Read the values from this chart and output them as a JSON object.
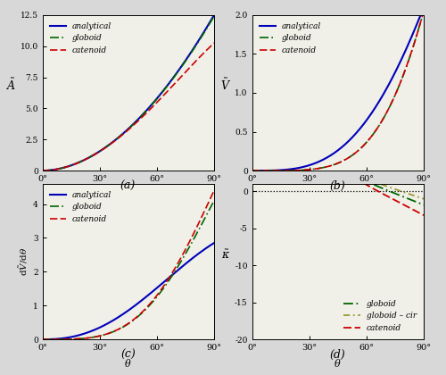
{
  "fig_width": 5.0,
  "fig_height": 4.2,
  "dpi": 100,
  "background_color": "#d8d8d8",
  "subplot_bg": "#f0f0e8",
  "colors": {
    "analytical": "#0000bb",
    "globoid": "#006600",
    "catenoid": "#cc0000",
    "globoid_cir": "#999933"
  },
  "panel_labels": [
    "(a)",
    "(b)",
    "(c)",
    "(d)"
  ]
}
